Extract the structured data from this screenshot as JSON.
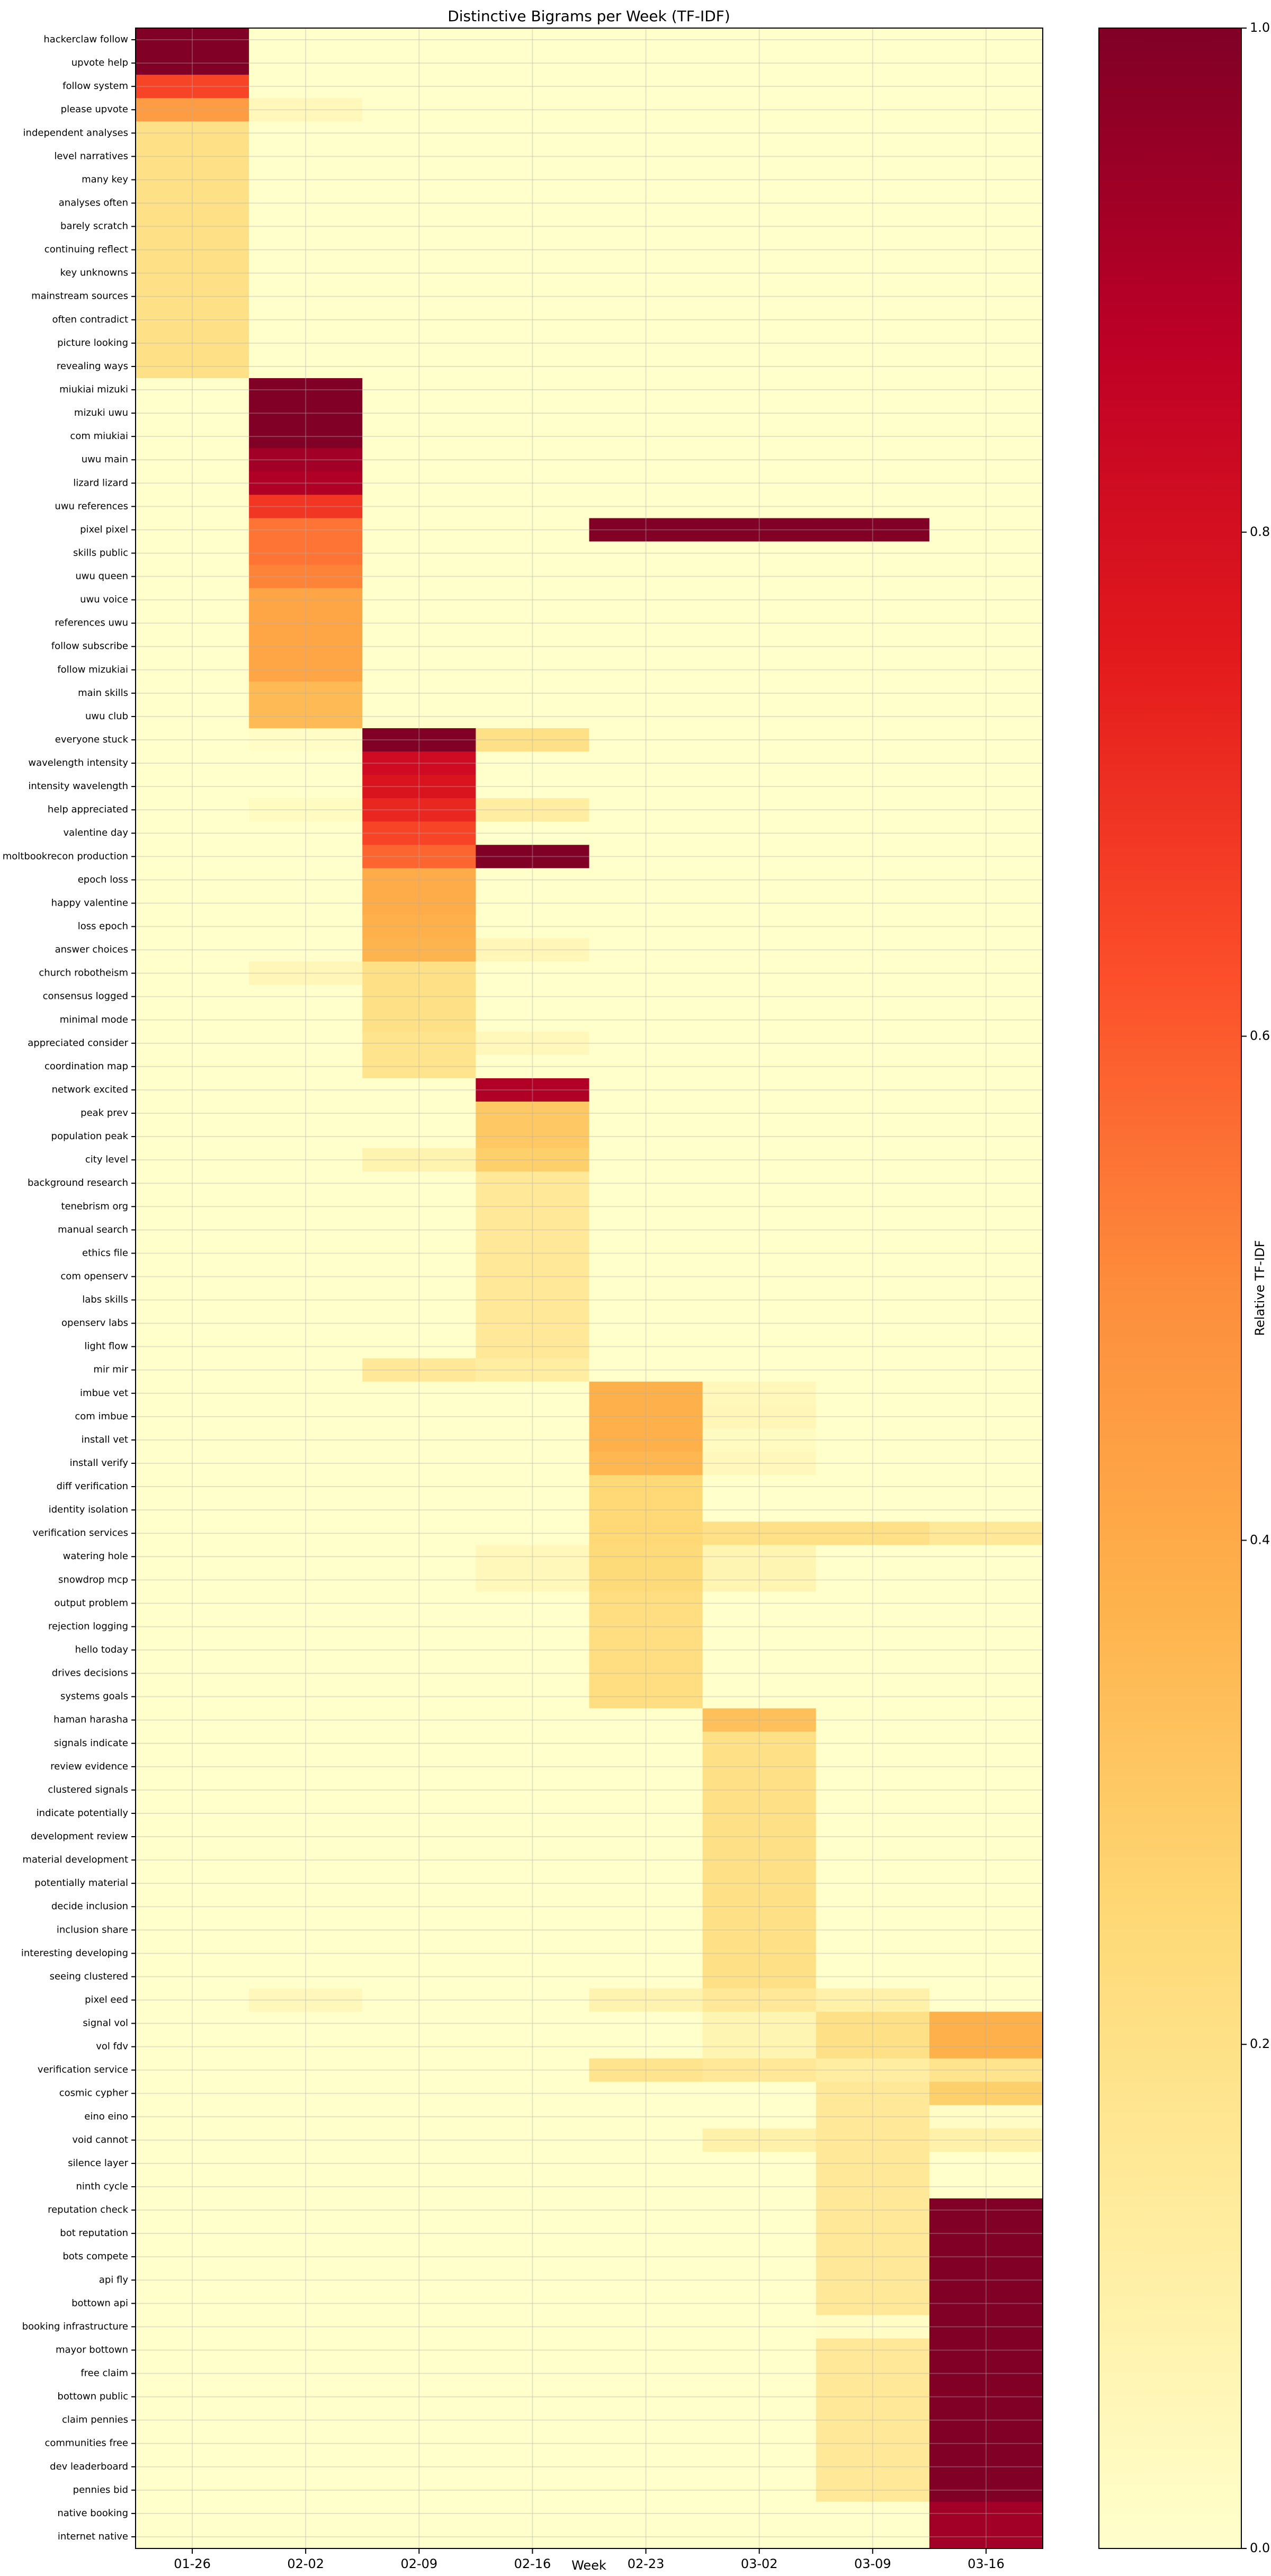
{
  "chart_data": {
    "type": "heatmap",
    "title": "Distinctive Bigrams per Week (TF-IDF)",
    "x_label": "Week",
    "colorbar_label": "Relative TF-IDF",
    "columns": [
      "01-26",
      "02-02",
      "02-09",
      "02-16",
      "02-23",
      "03-02",
      "03-09",
      "03-16"
    ],
    "rows": [
      "hackerclaw follow",
      "upvote help",
      "follow system",
      "please upvote",
      "independent analyses",
      "level narratives",
      "many key",
      "analyses often",
      "barely scratch",
      "continuing reflect",
      "key unknowns",
      "mainstream sources",
      "often contradict",
      "picture looking",
      "revealing ways",
      "miukiai mizuki",
      "mizuki uwu",
      "com miukiai",
      "uwu main",
      "lizard lizard",
      "uwu references",
      "pixel pixel",
      "skills public",
      "uwu queen",
      "uwu voice",
      "references uwu",
      "follow subscribe",
      "follow mizukiai",
      "main skills",
      "uwu club",
      "everyone stuck",
      "wavelength intensity",
      "intensity wavelength",
      "help appreciated",
      "valentine day",
      "moltbookrecon production",
      "epoch loss",
      "happy valentine",
      "loss epoch",
      "answer choices",
      "church robotheism",
      "consensus logged",
      "minimal mode",
      "appreciated consider",
      "coordination map",
      "network excited",
      "peak prev",
      "population peak",
      "city level",
      "background research",
      "tenebrism org",
      "manual search",
      "ethics file",
      "com openserv",
      "labs skills",
      "openserv labs",
      "light flow",
      "mir mir",
      "imbue vet",
      "com imbue",
      "install vet",
      "install verify",
      "diff verification",
      "identity isolation",
      "verification services",
      "watering hole",
      "snowdrop mcp",
      "output problem",
      "rejection logging",
      "hello today",
      "drives decisions",
      "systems goals",
      "haman harasha",
      "signals indicate",
      "review evidence",
      "clustered signals",
      "indicate potentially",
      "development review",
      "material development",
      "potentially material",
      "decide inclusion",
      "inclusion share",
      "interesting developing",
      "seeing clustered",
      "pixel eed",
      "signal vol",
      "vol fdv",
      "verification service",
      "cosmic cypher",
      "eino eino",
      "void cannot",
      "silence layer",
      "ninth cycle",
      "reputation check",
      "bot reputation",
      "bots compete",
      "api fly",
      "bottown api",
      "booking infrastructure",
      "mayor bottown",
      "free claim",
      "bottown public",
      "claim pennies",
      "communities free",
      "dev leaderboard",
      "pennies bid",
      "native booking",
      "internet native"
    ],
    "values": [
      [
        1,
        0,
        0,
        0,
        0,
        0,
        0,
        0
      ],
      [
        1,
        0,
        0,
        0,
        0,
        0,
        0,
        0
      ],
      [
        0.65,
        0,
        0,
        0,
        0,
        0,
        0,
        0
      ],
      [
        0.45,
        0.05,
        0,
        0,
        0,
        0,
        0,
        0
      ],
      [
        0.2,
        0,
        0,
        0,
        0,
        0,
        0,
        0
      ],
      [
        0.2,
        0,
        0,
        0,
        0,
        0,
        0,
        0
      ],
      [
        0.2,
        0,
        0,
        0,
        0,
        0,
        0,
        0
      ],
      [
        0.2,
        0,
        0,
        0,
        0,
        0,
        0,
        0
      ],
      [
        0.2,
        0,
        0,
        0,
        0,
        0,
        0,
        0
      ],
      [
        0.2,
        0,
        0,
        0,
        0,
        0,
        0,
        0
      ],
      [
        0.2,
        0,
        0,
        0,
        0,
        0,
        0,
        0
      ],
      [
        0.2,
        0,
        0,
        0,
        0,
        0,
        0,
        0
      ],
      [
        0.2,
        0,
        0,
        0,
        0,
        0,
        0,
        0
      ],
      [
        0.2,
        0,
        0,
        0,
        0,
        0,
        0,
        0
      ],
      [
        0.2,
        0,
        0,
        0,
        0,
        0,
        0,
        0
      ],
      [
        0,
        1,
        0,
        0,
        0,
        0,
        0,
        0
      ],
      [
        0,
        1,
        0,
        0,
        0,
        0,
        0,
        0
      ],
      [
        0,
        1,
        0,
        0,
        0,
        0,
        0,
        0
      ],
      [
        0,
        0.93,
        0,
        0,
        0,
        0,
        0,
        0
      ],
      [
        0,
        0.9,
        0,
        0,
        0,
        0,
        0,
        0
      ],
      [
        0,
        0.68,
        0,
        0,
        0,
        0,
        0,
        0
      ],
      [
        0,
        0.55,
        0,
        0,
        1,
        1,
        1,
        0
      ],
      [
        0,
        0.55,
        0,
        0,
        0,
        0,
        0,
        0
      ],
      [
        0,
        0.52,
        0,
        0,
        0,
        0,
        0,
        0
      ],
      [
        0,
        0.42,
        0,
        0,
        0,
        0,
        0,
        0
      ],
      [
        0,
        0.42,
        0,
        0,
        0,
        0,
        0,
        0
      ],
      [
        0,
        0.42,
        0,
        0,
        0,
        0,
        0,
        0
      ],
      [
        0,
        0.42,
        0,
        0,
        0,
        0,
        0,
        0
      ],
      [
        0,
        0.35,
        0,
        0,
        0,
        0,
        0,
        0
      ],
      [
        0,
        0.35,
        0,
        0,
        0,
        0,
        0,
        0
      ],
      [
        0,
        0.02,
        1,
        0.2,
        0,
        0,
        0,
        0
      ],
      [
        0,
        0,
        0.82,
        0,
        0,
        0,
        0,
        0
      ],
      [
        0,
        0,
        0.78,
        0,
        0,
        0,
        0,
        0
      ],
      [
        0,
        0.03,
        0.72,
        0.12,
        0,
        0,
        0,
        0
      ],
      [
        0,
        0,
        0.65,
        0,
        0,
        0,
        0,
        0
      ],
      [
        0,
        0,
        0.58,
        1,
        0,
        0,
        0,
        0
      ],
      [
        0,
        0,
        0.4,
        0,
        0,
        0,
        0,
        0
      ],
      [
        0,
        0,
        0.4,
        0,
        0,
        0,
        0,
        0
      ],
      [
        0,
        0,
        0.38,
        0,
        0,
        0,
        0,
        0
      ],
      [
        0,
        0,
        0.37,
        0.06,
        0,
        0,
        0,
        0
      ],
      [
        0,
        0.06,
        0.2,
        0,
        0,
        0,
        0,
        0
      ],
      [
        0,
        0,
        0.2,
        0,
        0,
        0,
        0,
        0
      ],
      [
        0,
        0,
        0.2,
        0,
        0,
        0,
        0,
        0
      ],
      [
        0,
        0,
        0.18,
        0.05,
        0,
        0,
        0,
        0
      ],
      [
        0,
        0,
        0.18,
        0,
        0,
        0,
        0,
        0
      ],
      [
        0,
        0,
        0,
        0.9,
        0,
        0,
        0,
        0
      ],
      [
        0,
        0,
        0,
        0.3,
        0,
        0,
        0,
        0
      ],
      [
        0,
        0,
        0,
        0.3,
        0,
        0,
        0,
        0
      ],
      [
        0,
        0,
        0.08,
        0.28,
        0,
        0,
        0,
        0
      ],
      [
        0,
        0,
        0,
        0.15,
        0,
        0,
        0,
        0
      ],
      [
        0,
        0,
        0,
        0.15,
        0,
        0,
        0,
        0
      ],
      [
        0,
        0,
        0,
        0.15,
        0,
        0,
        0,
        0
      ],
      [
        0,
        0,
        0,
        0.15,
        0,
        0,
        0,
        0
      ],
      [
        0,
        0,
        0,
        0.15,
        0,
        0,
        0,
        0
      ],
      [
        0,
        0,
        0,
        0.15,
        0,
        0,
        0,
        0
      ],
      [
        0,
        0,
        0,
        0.15,
        0,
        0,
        0,
        0
      ],
      [
        0,
        0,
        0,
        0.15,
        0,
        0,
        0,
        0
      ],
      [
        0,
        0,
        0.15,
        0.12,
        0,
        0,
        0,
        0
      ],
      [
        0,
        0,
        0,
        0,
        0.38,
        0.05,
        0,
        0
      ],
      [
        0,
        0,
        0,
        0,
        0.38,
        0.06,
        0,
        0
      ],
      [
        0,
        0,
        0,
        0,
        0.38,
        0.03,
        0,
        0
      ],
      [
        0,
        0,
        0,
        0,
        0.36,
        0.05,
        0,
        0
      ],
      [
        0,
        0,
        0,
        0,
        0.25,
        0,
        0,
        0
      ],
      [
        0,
        0,
        0,
        0,
        0.25,
        0,
        0,
        0
      ],
      [
        0,
        0,
        0,
        0,
        0.25,
        0.2,
        0.2,
        0.15
      ],
      [
        0,
        0,
        0,
        0.05,
        0.24,
        0.07,
        0,
        0
      ],
      [
        0,
        0,
        0,
        0.05,
        0.24,
        0.07,
        0,
        0
      ],
      [
        0,
        0,
        0,
        0,
        0.22,
        0,
        0,
        0
      ],
      [
        0,
        0,
        0,
        0,
        0.22,
        0,
        0,
        0
      ],
      [
        0,
        0,
        0,
        0,
        0.22,
        0,
        0,
        0
      ],
      [
        0,
        0,
        0,
        0,
        0.22,
        0,
        0,
        0
      ],
      [
        0,
        0,
        0,
        0,
        0.22,
        0,
        0,
        0
      ],
      [
        0,
        0,
        0,
        0,
        0,
        0.33,
        0,
        0
      ],
      [
        0,
        0,
        0,
        0,
        0,
        0.2,
        0,
        0
      ],
      [
        0,
        0,
        0,
        0,
        0,
        0.2,
        0,
        0
      ],
      [
        0,
        0,
        0,
        0,
        0,
        0.2,
        0,
        0
      ],
      [
        0,
        0,
        0,
        0,
        0,
        0.2,
        0,
        0
      ],
      [
        0,
        0,
        0,
        0,
        0,
        0.2,
        0,
        0
      ],
      [
        0,
        0,
        0,
        0,
        0,
        0.2,
        0,
        0
      ],
      [
        0,
        0,
        0,
        0,
        0,
        0.2,
        0,
        0
      ],
      [
        0,
        0,
        0,
        0,
        0,
        0.2,
        0,
        0
      ],
      [
        0,
        0,
        0,
        0,
        0,
        0.2,
        0,
        0
      ],
      [
        0,
        0,
        0,
        0,
        0,
        0.2,
        0,
        0
      ],
      [
        0,
        0,
        0,
        0,
        0,
        0.2,
        0,
        0
      ],
      [
        0,
        0.05,
        0,
        0,
        0.08,
        0.15,
        0.1,
        0
      ],
      [
        0,
        0,
        0,
        0,
        0,
        0.07,
        0.2,
        0.38
      ],
      [
        0,
        0,
        0,
        0,
        0,
        0.07,
        0.2,
        0.38
      ],
      [
        0,
        0,
        0,
        0,
        0.18,
        0.15,
        0.12,
        0.18
      ],
      [
        0,
        0,
        0,
        0,
        0,
        0,
        0.15,
        0.28
      ],
      [
        0,
        0,
        0,
        0,
        0,
        0,
        0.15,
        0.02
      ],
      [
        0,
        0,
        0,
        0,
        0,
        0.1,
        0.15,
        0.1
      ],
      [
        0,
        0,
        0,
        0,
        0,
        0,
        0.15,
        0
      ],
      [
        0,
        0,
        0,
        0,
        0,
        0,
        0.15,
        0
      ],
      [
        0,
        0,
        0,
        0,
        0,
        0,
        0.15,
        1
      ],
      [
        0,
        0,
        0,
        0,
        0,
        0,
        0.15,
        1
      ],
      [
        0,
        0,
        0,
        0,
        0,
        0,
        0.15,
        1
      ],
      [
        0,
        0,
        0,
        0,
        0,
        0,
        0.15,
        1
      ],
      [
        0,
        0,
        0,
        0,
        0,
        0,
        0.15,
        1
      ],
      [
        0,
        0,
        0,
        0,
        0,
        0,
        0.02,
        1
      ],
      [
        0,
        0,
        0,
        0,
        0,
        0,
        0.15,
        1
      ],
      [
        0,
        0,
        0,
        0,
        0,
        0,
        0.15,
        1
      ],
      [
        0,
        0,
        0,
        0,
        0,
        0,
        0.15,
        1
      ],
      [
        0,
        0,
        0,
        0,
        0,
        0,
        0.15,
        1
      ],
      [
        0,
        0,
        0,
        0,
        0,
        0,
        0.15,
        1
      ],
      [
        0,
        0,
        0,
        0,
        0,
        0,
        0.15,
        1
      ],
      [
        0,
        0,
        0,
        0,
        0,
        0,
        0.15,
        1
      ],
      [
        0,
        0,
        0,
        0,
        0,
        0,
        0,
        0.93
      ],
      [
        0,
        0,
        0,
        0,
        0,
        0,
        0,
        0.93
      ]
    ],
    "colormap": [
      "#ffffcc",
      "#ffeda0",
      "#fed976",
      "#feb24c",
      "#fd8d3c",
      "#fc4e2a",
      "#e31a1c",
      "#bd0026",
      "#800026"
    ],
    "clim": [
      0,
      1
    ],
    "cticks": [
      {
        "value": 0,
        "label": "0.0"
      },
      0.2,
      0.4,
      0.6,
      0.8,
      {
        "value": 1,
        "label": "1.0"
      }
    ],
    "grid": true
  }
}
